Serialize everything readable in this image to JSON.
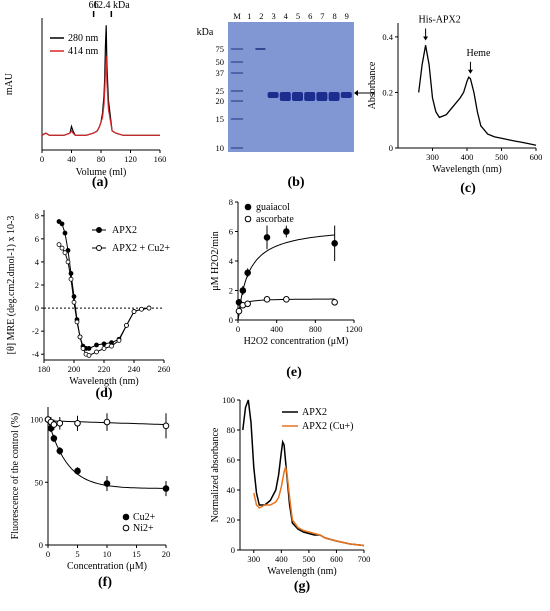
{
  "panels": [
    {
      "id": "a",
      "label": "(a)"
    },
    {
      "id": "b",
      "label": "(b)"
    },
    {
      "id": "c",
      "label": "(c)"
    },
    {
      "id": "d",
      "label": "(d)"
    },
    {
      "id": "e",
      "label": "(e)"
    },
    {
      "id": "f",
      "label": "(f)"
    },
    {
      "id": "g",
      "label": "(g)"
    }
  ],
  "chart_data": [
    {
      "id": "a",
      "type": "line",
      "xlabel": "Volume (ml)",
      "ylabel": "mAU",
      "xlim": [
        0,
        160
      ],
      "ylim": [
        -5,
        40
      ],
      "xticks": [
        0,
        40,
        80,
        120,
        160
      ],
      "top_markers": [
        {
          "x": 70,
          "label": "66"
        },
        {
          "x": 94,
          "label": "12.4 kDa"
        }
      ],
      "series": [
        {
          "name": "280 nm",
          "color": "#000000",
          "x": [
            0,
            5,
            10,
            20,
            30,
            38,
            40,
            42,
            45,
            50,
            60,
            70,
            75,
            78,
            80,
            82,
            84,
            85,
            86,
            87,
            88,
            90,
            95,
            100,
            110,
            120,
            130,
            140,
            150,
            160
          ],
          "values": [
            0,
            0.5,
            0,
            0,
            0,
            0.5,
            2,
            1,
            0,
            0,
            0,
            0.5,
            1,
            2,
            3,
            5,
            9,
            13,
            20,
            25,
            16,
            8,
            1,
            0.5,
            0,
            0,
            0,
            0,
            0,
            0
          ]
        },
        {
          "name": "414 nm",
          "color": "#d62728",
          "x": [
            0,
            5,
            10,
            20,
            30,
            38,
            40,
            42,
            45,
            50,
            60,
            70,
            75,
            78,
            80,
            82,
            84,
            85,
            86,
            87,
            88,
            90,
            95,
            100,
            110,
            120,
            130,
            140,
            150,
            160
          ],
          "values": [
            0,
            0.5,
            0,
            0,
            0,
            0.5,
            1,
            0.5,
            0,
            0,
            0,
            0.5,
            1,
            2,
            3,
            4,
            7,
            10,
            14,
            18,
            12,
            6,
            1,
            0.5,
            0,
            0,
            0,
            0,
            0,
            0
          ]
        }
      ]
    },
    {
      "id": "b",
      "type": "other",
      "ylabel": "kDa",
      "lanes": [
        "M",
        "1",
        "2",
        "3",
        "4",
        "5",
        "6",
        "7",
        "8",
        "9"
      ],
      "marker_kda": [
        "75",
        "50",
        "37",
        "25",
        "20",
        "15",
        "10"
      ]
    },
    {
      "id": "c",
      "type": "line",
      "xlabel": "Wavelength (nm)",
      "ylabel": "Absorbance",
      "xlim": [
        200,
        600
      ],
      "ylim": [
        0,
        0.45
      ],
      "xticks": [
        300,
        400,
        500,
        600
      ],
      "yticks": [
        0.0,
        0.2,
        0.4
      ],
      "annotations": [
        {
          "text": "His-APX2",
          "x": 280,
          "y": 0.38
        },
        {
          "text": "Heme",
          "x": 410,
          "y": 0.26
        }
      ],
      "series": [
        {
          "name": "",
          "x": [
            260,
            270,
            280,
            290,
            300,
            310,
            320,
            340,
            360,
            380,
            390,
            400,
            405,
            410,
            420,
            430,
            440,
            460,
            480,
            500,
            520,
            540,
            560,
            580,
            600
          ],
          "values": [
            0.2,
            0.3,
            0.37,
            0.3,
            0.18,
            0.13,
            0.11,
            0.12,
            0.15,
            0.18,
            0.2,
            0.24,
            0.255,
            0.25,
            0.2,
            0.13,
            0.08,
            0.05,
            0.04,
            0.035,
            0.03,
            0.025,
            0.02,
            0.015,
            0.01
          ]
        }
      ]
    },
    {
      "id": "d",
      "type": "line",
      "xlabel": "Wavelength (nm)",
      "ylabel": "[θ] MRE (deg.cm2.dmol-1) x 10-3",
      "xlim": [
        180,
        260
      ],
      "ylim": [
        -4.5,
        8.5
      ],
      "xticks": [
        180,
        200,
        220,
        240,
        260
      ],
      "yticks": [
        -4,
        -2,
        0,
        2,
        4,
        6,
        8
      ],
      "series": [
        {
          "name": "APX2",
          "x": [
            190,
            192,
            194,
            196,
            198,
            200,
            202,
            204,
            206,
            208,
            210,
            215,
            220,
            225,
            230,
            235,
            240,
            245,
            250
          ],
          "values": [
            7.5,
            7.3,
            6.5,
            5,
            3,
            1,
            -1,
            -2.5,
            -3.3,
            -3.5,
            -3.5,
            -3.2,
            -3.1,
            -3,
            -2.7,
            -1.5,
            -0.3,
            -0.1,
            0
          ]
        },
        {
          "name": "APX2 + Cu2+",
          "x": [
            190,
            192,
            194,
            196,
            198,
            200,
            202,
            204,
            206,
            208,
            210,
            215,
            220,
            225,
            230,
            235,
            240,
            245,
            250
          ],
          "values": [
            5.5,
            5.2,
            4.8,
            4,
            2.5,
            0.5,
            -1.2,
            -2.5,
            -3.5,
            -4,
            -4.1,
            -3.8,
            -3.5,
            -3.3,
            -2.8,
            -1.5,
            -0.3,
            -0.1,
            0
          ]
        }
      ]
    },
    {
      "id": "e",
      "type": "scatter",
      "xlabel": "H2O2 concentration (μM)",
      "ylabel": "μM H2O2/min",
      "xlim": [
        0,
        1200
      ],
      "ylim": [
        0,
        8
      ],
      "xticks": [
        0,
        400,
        800,
        1200
      ],
      "yticks": [
        0,
        2,
        4,
        6,
        8
      ],
      "series": [
        {
          "name": "guaiacol",
          "x": [
            10,
            50,
            100,
            300,
            500,
            1000
          ],
          "values": [
            1.2,
            2,
            3.2,
            5.6,
            6,
            5.2
          ],
          "err": [
            0.2,
            0.3,
            0.3,
            0.8,
            0.4,
            1.2
          ]
        },
        {
          "name": "ascorbate",
          "x": [
            10,
            50,
            100,
            300,
            500,
            1000
          ],
          "values": [
            0.6,
            1,
            1.1,
            1.4,
            1.4,
            1.2
          ],
          "err": [
            0.1,
            0.1,
            0.1,
            0.1,
            0.1,
            0.1
          ]
        }
      ]
    },
    {
      "id": "f",
      "type": "scatter",
      "xlabel": "Concentration (μM)",
      "ylabel": "Fluorescence of the control (%)",
      "xlim": [
        0,
        20
      ],
      "ylim": [
        0,
        110
      ],
      "xticks": [
        0,
        5,
        10,
        15,
        20
      ],
      "yticks": [
        0,
        50,
        100
      ],
      "series": [
        {
          "name": "Cu2+",
          "x": [
            0,
            0.5,
            1,
            2,
            5,
            10,
            20
          ],
          "values": [
            100,
            93,
            85,
            75,
            59,
            49,
            45
          ],
          "err": [
            3,
            3,
            3,
            3,
            3,
            6,
            6
          ]
        },
        {
          "name": "Ni2+",
          "x": [
            0,
            0.5,
            1,
            2,
            5,
            10,
            20
          ],
          "values": [
            100,
            98,
            96,
            97,
            97,
            98,
            95
          ],
          "err": [
            3,
            4,
            4,
            5,
            6,
            7,
            10
          ]
        }
      ]
    },
    {
      "id": "g",
      "type": "line",
      "xlabel": "Wavelength (nm)",
      "ylabel": "Normalized absorbance",
      "xlim": [
        250,
        700
      ],
      "ylim": [
        0,
        100
      ],
      "xticks": [
        300,
        400,
        500,
        600,
        700
      ],
      "yticks": [
        0,
        20,
        40,
        60,
        80,
        100
      ],
      "series": [
        {
          "name": "APX2",
          "color": "#000000",
          "x": [
            260,
            270,
            280,
            290,
            300,
            310,
            320,
            340,
            360,
            380,
            390,
            400,
            405,
            410,
            420,
            430,
            440,
            460,
            480,
            500,
            520,
            540,
            560,
            580,
            600,
            650,
            700
          ],
          "values": [
            80,
            95,
            100,
            85,
            55,
            38,
            30,
            30,
            33,
            40,
            50,
            65,
            72,
            70,
            50,
            30,
            18,
            14,
            12,
            11,
            10,
            10,
            8,
            7,
            6,
            4,
            3
          ]
        },
        {
          "name": "APX2 (Cu+)",
          "color": "#e8731c",
          "x": [
            300,
            310,
            320,
            340,
            360,
            380,
            390,
            400,
            410,
            415,
            420,
            430,
            440,
            460,
            480,
            500,
            520,
            540,
            560,
            580,
            600,
            650,
            700
          ],
          "values": [
            38,
            30,
            28,
            30,
            30,
            32,
            35,
            42,
            52,
            55,
            52,
            35,
            20,
            15,
            13,
            12,
            11,
            10,
            8,
            7,
            6,
            4,
            3
          ]
        }
      ]
    }
  ]
}
